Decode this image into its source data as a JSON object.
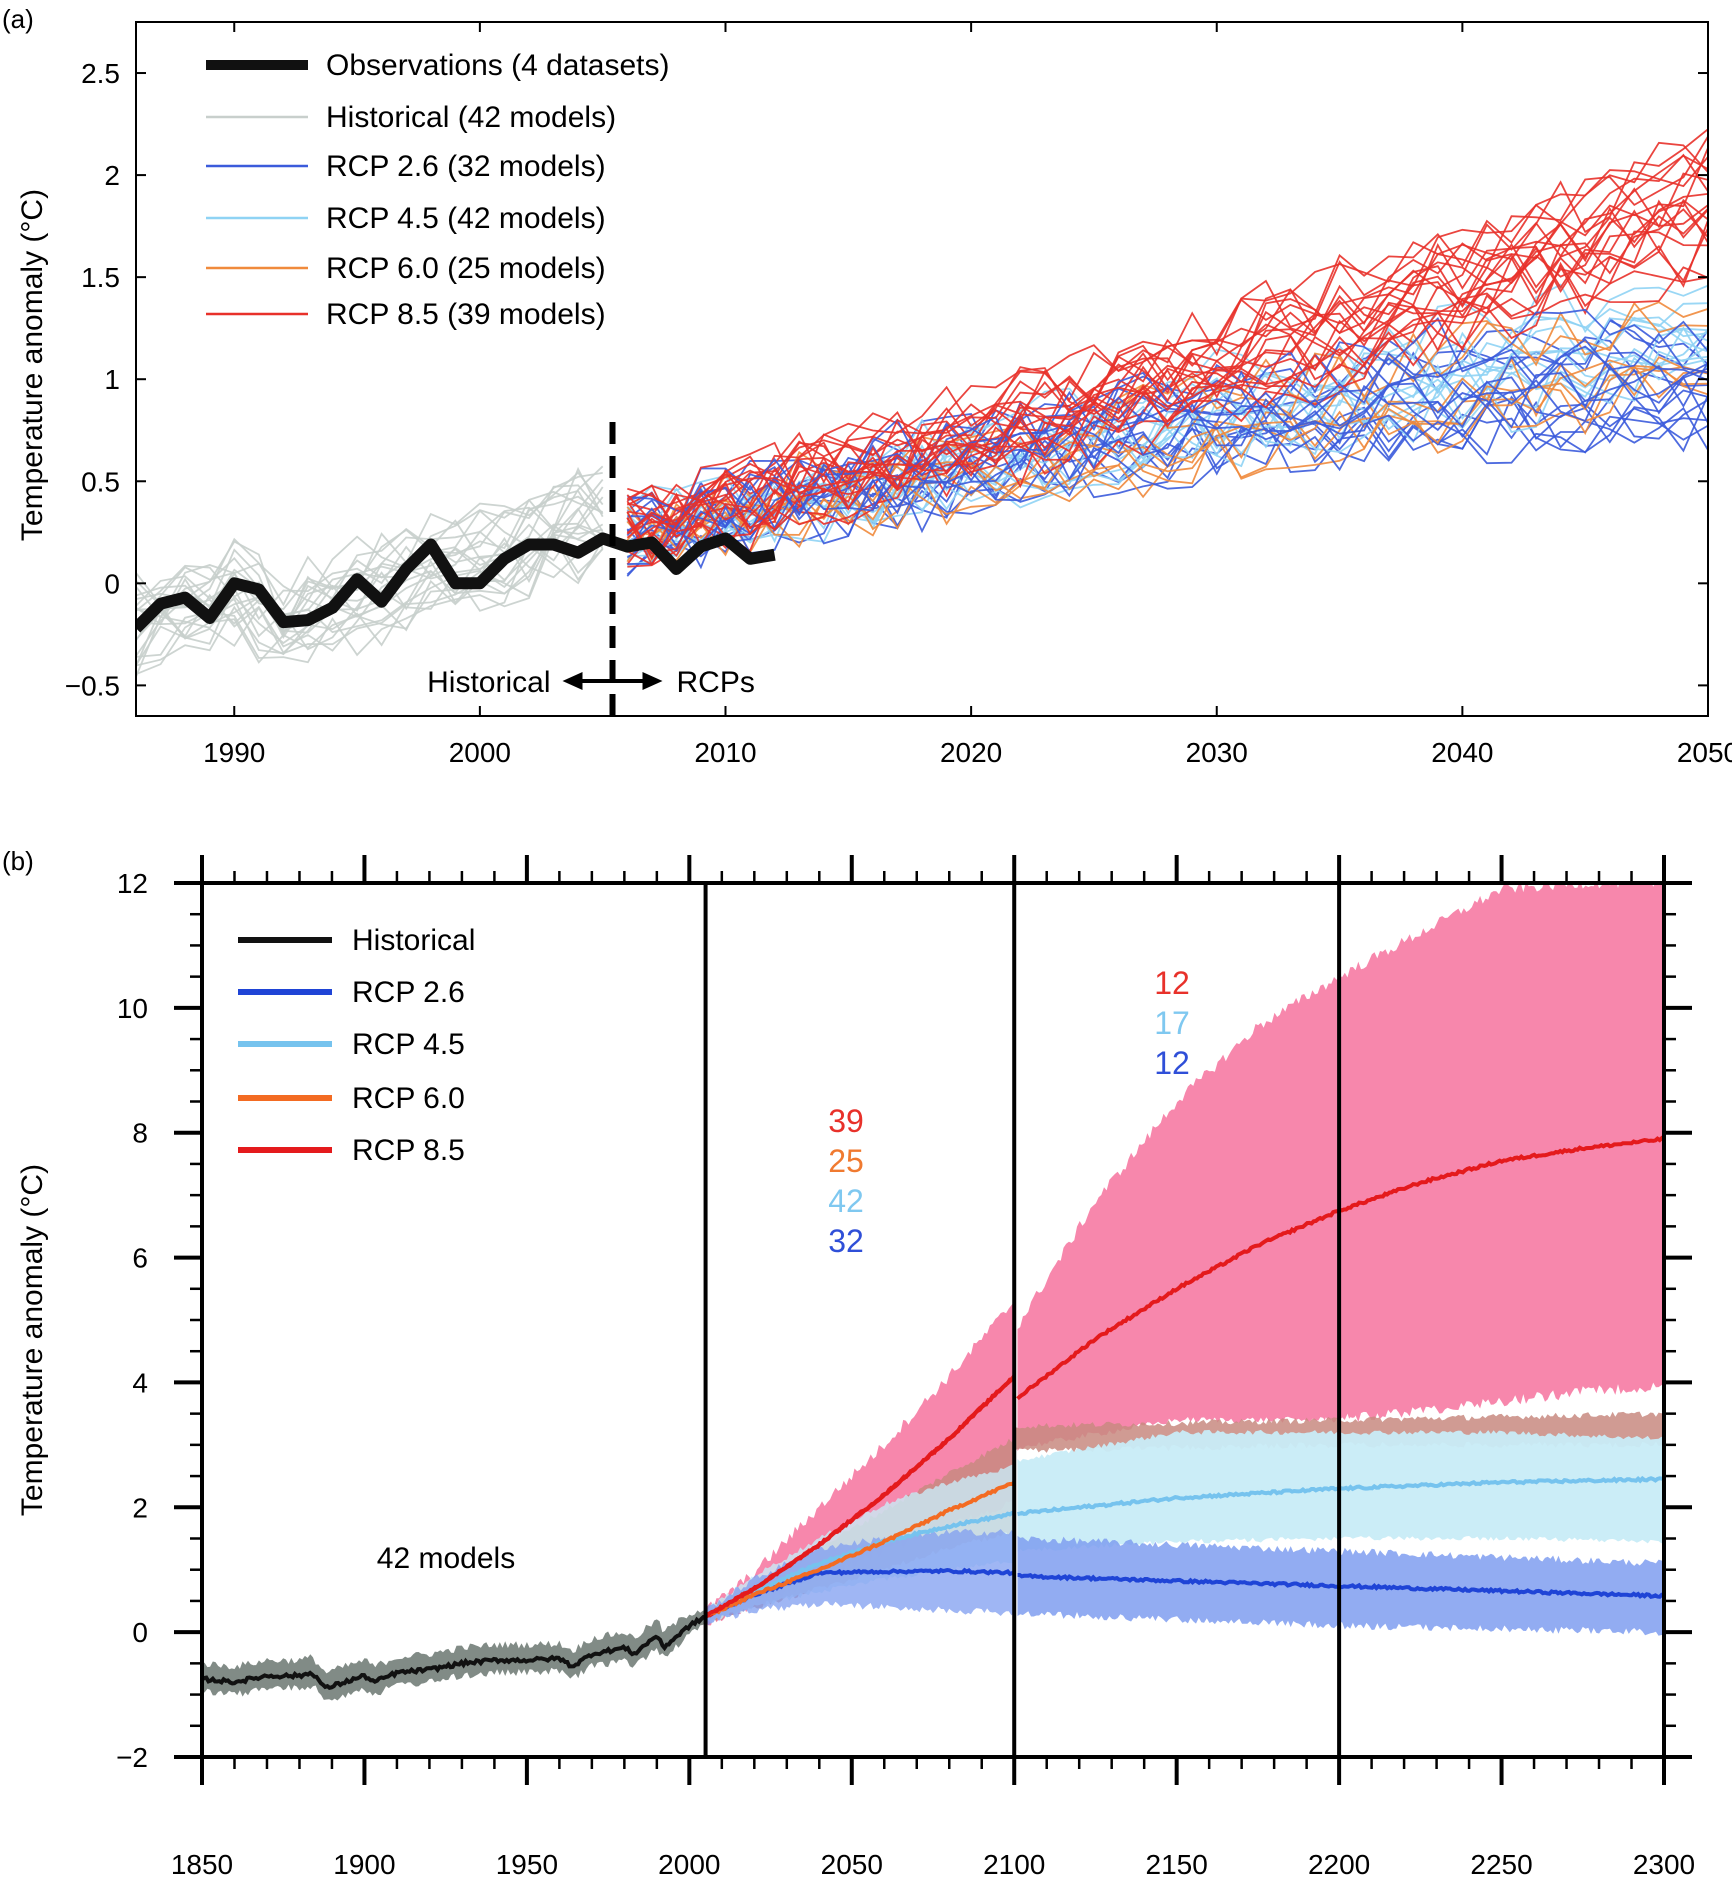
{
  "chart_data": [
    {
      "panel": "(a)",
      "type": "line",
      "ylabel": "Temperature anomaly (°C)",
      "xlim": [
        1986,
        2050
      ],
      "ylim": [
        -0.65,
        2.75
      ],
      "xticks": [
        1990,
        2000,
        2010,
        2020,
        2030,
        2040,
        2050
      ],
      "xtick_labels": [
        "1990",
        "2000",
        "2010",
        "2020",
        "2030",
        "2040",
        "2050"
      ],
      "yticks": [
        -0.5,
        0,
        0.5,
        1,
        1.5,
        2,
        2.5
      ],
      "ytick_labels": [
        "−0.5",
        "0",
        "0.5",
        "1",
        "1.5",
        "2",
        "2.5"
      ],
      "legend_position": "top-left",
      "divider_year": 2005.4,
      "annotations": {
        "left": "Historical",
        "right": "RCPs"
      },
      "series": [
        {
          "name": "Observations (4 datasets)",
          "color": "#111111",
          "x": [
            1986,
            1987,
            1988,
            1989,
            1990,
            1991,
            1992,
            1993,
            1994,
            1995,
            1996,
            1997,
            1998,
            1999,
            2000,
            2001,
            2002,
            2003,
            2004,
            2005,
            2006,
            2007,
            2008,
            2009,
            2010,
            2011,
            2012
          ],
          "y": [
            -0.22,
            -0.1,
            -0.07,
            -0.17,
            0.0,
            -0.03,
            -0.19,
            -0.18,
            -0.12,
            0.02,
            -0.09,
            0.07,
            0.19,
            0.0,
            0.0,
            0.12,
            0.19,
            0.19,
            0.15,
            0.22,
            0.18,
            0.2,
            0.07,
            0.18,
            0.22,
            0.12,
            0.14
          ]
        },
        {
          "name": "Historical (42 models)",
          "color": "#c8cfcc",
          "models": 42,
          "x": [
            1986,
            1988,
            1990,
            1992,
            1994,
            1996,
            1998,
            2000,
            2002,
            2004,
            2005
          ],
          "mean": [
            -0.18,
            -0.12,
            -0.05,
            -0.2,
            -0.1,
            0.0,
            0.08,
            0.12,
            0.22,
            0.3,
            0.32
          ],
          "spread": 0.2
        },
        {
          "name": "RCP 2.6 (32 models)",
          "color": "#3b5bdb",
          "models": 32,
          "x": [
            2006,
            2010,
            2020,
            2030,
            2040,
            2050
          ],
          "mean": [
            0.25,
            0.35,
            0.6,
            0.8,
            0.95,
            1.0
          ],
          "spread": 0.35
        },
        {
          "name": "RCP 4.5 (42 models)",
          "color": "#8fd3f4",
          "models": 42,
          "x": [
            2006,
            2010,
            2020,
            2030,
            2040,
            2050
          ],
          "mean": [
            0.25,
            0.35,
            0.6,
            0.85,
            1.05,
            1.25
          ],
          "spread": 0.3
        },
        {
          "name": "RCP 6.0 (25 models)",
          "color": "#f08a3c",
          "models": 25,
          "x": [
            2006,
            2010,
            2020,
            2030,
            2040,
            2050
          ],
          "mean": [
            0.25,
            0.33,
            0.55,
            0.75,
            0.95,
            1.15
          ],
          "spread": 0.3
        },
        {
          "name": "RCP 8.5 (39 models)",
          "color": "#e8312a",
          "models": 39,
          "x": [
            2006,
            2010,
            2020,
            2030,
            2040,
            2050
          ],
          "mean": [
            0.25,
            0.38,
            0.7,
            1.05,
            1.45,
            1.85
          ],
          "spread": 0.35
        }
      ]
    },
    {
      "panel": "(b)",
      "type": "line",
      "ylabel": "Temperature anomaly (°C)",
      "xlim": [
        1850,
        2300
      ],
      "ylim": [
        -2,
        12
      ],
      "xticks": [
        1850,
        1900,
        1950,
        2000,
        2050,
        2100,
        2150,
        2200,
        2250,
        2300
      ],
      "xtick_labels": [
        "1850",
        "1900",
        "1950",
        "2000",
        "2050",
        "2100",
        "2150",
        "2200",
        "2250",
        "2300"
      ],
      "yticks": [
        -2,
        0,
        2,
        4,
        6,
        8,
        10,
        12
      ],
      "ytick_labels": [
        "−2",
        "0",
        "2",
        "4",
        "6",
        "8",
        "10",
        "12"
      ],
      "vertical_lines": [
        2005,
        2100,
        2200
      ],
      "legend_position": "top-left",
      "annotation": "42 models",
      "counts_2006_2100": [
        {
          "value": "39",
          "color": "#e8312a"
        },
        {
          "value": "25",
          "color": "#f07a30"
        },
        {
          "value": "42",
          "color": "#7fc8f0"
        },
        {
          "value": "32",
          "color": "#2f4fd8"
        }
      ],
      "counts_2100_2300": [
        {
          "value": "12",
          "color": "#e8312a"
        },
        {
          "value": "17",
          "color": "#7fc8f0"
        },
        {
          "value": "12",
          "color": "#2f4fd8"
        }
      ],
      "series": [
        {
          "name": "Historical",
          "color": "#111111",
          "band_color": "#7a8580",
          "x": [
            1850,
            1860,
            1870,
            1880,
            1884,
            1888,
            1900,
            1903,
            1910,
            1920,
            1930,
            1940,
            1950,
            1960,
            1964,
            1970,
            1980,
            1983,
            1990,
            1992,
            2000,
            2005
          ],
          "y": [
            -0.75,
            -0.8,
            -0.7,
            -0.7,
            -0.65,
            -0.9,
            -0.7,
            -0.8,
            -0.65,
            -0.6,
            -0.5,
            -0.45,
            -0.45,
            -0.42,
            -0.55,
            -0.35,
            -0.25,
            -0.35,
            -0.05,
            -0.25,
            0.1,
            0.25
          ],
          "lower": [
            -0.95,
            -1.0,
            -0.9,
            -0.9,
            -0.85,
            -1.1,
            -0.9,
            -1.0,
            -0.85,
            -0.8,
            -0.7,
            -0.65,
            -0.65,
            -0.62,
            -0.75,
            -0.55,
            -0.45,
            -0.55,
            -0.25,
            -0.4,
            -0.05,
            0.12
          ],
          "upper": [
            -0.5,
            -0.55,
            -0.45,
            -0.45,
            -0.4,
            -0.65,
            -0.45,
            -0.55,
            -0.4,
            -0.35,
            -0.25,
            -0.2,
            -0.2,
            -0.18,
            -0.3,
            -0.1,
            0.0,
            -0.1,
            0.2,
            0.0,
            0.3,
            0.38
          ]
        },
        {
          "name": "RCP 2.6",
          "color": "#1f44d6",
          "band_color": "#7f9ef0",
          "x": [
            2005,
            2020,
            2040,
            2060,
            2080,
            2100,
            2101,
            2150,
            2200,
            2250,
            2300
          ],
          "y": [
            0.25,
            0.6,
            0.95,
            0.97,
            0.98,
            0.95,
            0.9,
            0.82,
            0.74,
            0.66,
            0.58
          ],
          "lower": [
            0.15,
            0.35,
            0.45,
            0.4,
            0.35,
            0.3,
            0.3,
            0.2,
            0.1,
            0.05,
            0.0
          ],
          "upper": [
            0.35,
            0.85,
            1.35,
            1.5,
            1.6,
            1.6,
            1.5,
            1.4,
            1.3,
            1.2,
            1.1
          ]
        },
        {
          "name": "RCP 4.5",
          "color": "#76c3ee",
          "band_color": "#c8ecf7",
          "x": [
            2005,
            2020,
            2040,
            2060,
            2080,
            2100,
            2101,
            2150,
            2200,
            2250,
            2300
          ],
          "y": [
            0.25,
            0.65,
            1.1,
            1.45,
            1.7,
            1.9,
            1.9,
            2.15,
            2.3,
            2.4,
            2.45
          ],
          "lower": [
            0.15,
            0.4,
            0.65,
            0.85,
            1.0,
            1.15,
            1.3,
            1.45,
            1.5,
            1.5,
            1.45
          ],
          "upper": [
            0.35,
            0.9,
            1.5,
            2.05,
            2.4,
            2.65,
            2.75,
            3.2,
            3.2,
            3.2,
            3.1
          ]
        },
        {
          "name": "RCP 6.0",
          "color": "#f36b22",
          "band_color": "#c88a80",
          "x": [
            2005,
            2020,
            2040,
            2060,
            2080,
            2100
          ],
          "y": [
            0.25,
            0.6,
            1.0,
            1.45,
            1.95,
            2.4
          ],
          "lower": [
            0.15,
            0.4,
            0.7,
            1.0,
            1.35,
            1.6
          ],
          "upper": [
            0.35,
            0.8,
            1.35,
            1.95,
            2.55,
            3.1
          ],
          "ext_x": [
            2100,
            2200,
            2300
          ],
          "ext_lower": [
            2.9,
            3.0,
            3.0
          ],
          "ext_upper": [
            3.3,
            3.4,
            3.5
          ]
        },
        {
          "name": "RCP 8.5",
          "color": "#e41a1c",
          "band_color": "#f781a8",
          "x": [
            2005,
            2020,
            2040,
            2060,
            2080,
            2100,
            2101,
            2125,
            2150,
            2175,
            2200,
            2225,
            2250,
            2275,
            2300
          ],
          "y": [
            0.25,
            0.7,
            1.4,
            2.2,
            3.1,
            4.1,
            3.75,
            4.7,
            5.5,
            6.2,
            6.75,
            7.2,
            7.55,
            7.75,
            7.9
          ],
          "lower": [
            0.15,
            0.45,
            0.85,
            1.3,
            1.7,
            2.1,
            2.2,
            2.55,
            2.85,
            3.15,
            3.4,
            3.55,
            3.7,
            3.85,
            3.95
          ],
          "upper": [
            0.35,
            0.95,
            2.0,
            3.0,
            4.1,
            5.3,
            4.9,
            6.9,
            8.5,
            9.7,
            10.5,
            11.2,
            11.9,
            12.0,
            12.0
          ]
        }
      ]
    }
  ]
}
